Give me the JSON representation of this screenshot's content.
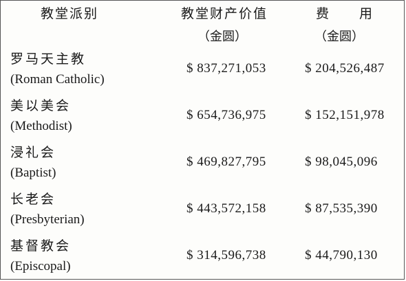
{
  "headers": {
    "col1": "教堂派别",
    "col2": "教堂财产价值",
    "col3": "费　　用",
    "unit2": "（金圆）",
    "unit3": "（金圆）"
  },
  "rows": [
    {
      "cn": "罗马天主教",
      "en": "(Roman Catholic)",
      "value": "$ 837,271,053",
      "expense": "$ 204,526,487"
    },
    {
      "cn": "美以美会",
      "en": "(Methodist)",
      "value": "$ 654,736,975",
      "expense": "$ 152,151,978"
    },
    {
      "cn": "浸礼会",
      "en": "(Baptist)",
      "value": "$ 469,827,795",
      "expense": "$ 98,045,096"
    },
    {
      "cn": "长老会",
      "en": "(Presbyterian)",
      "value": "$ 443,572,158",
      "expense": "$ 87,535,390"
    },
    {
      "cn": "基督教会",
      "en": "(Episcopal)",
      "value": "$ 314,596,738",
      "expense": "$ 44,790,130"
    }
  ]
}
